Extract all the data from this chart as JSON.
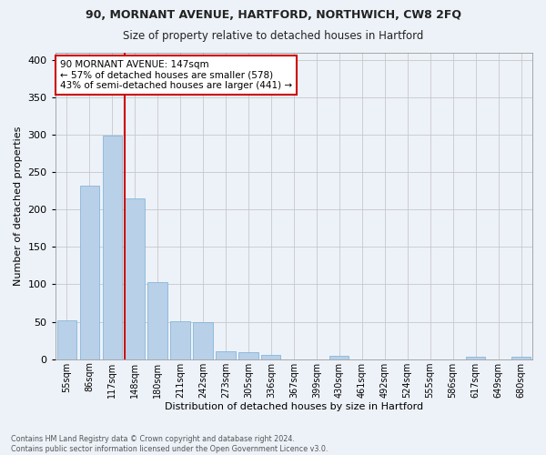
{
  "title": "90, MORNANT AVENUE, HARTFORD, NORTHWICH, CW8 2FQ",
  "subtitle": "Size of property relative to detached houses in Hartford",
  "xlabel": "Distribution of detached houses by size in Hartford",
  "ylabel": "Number of detached properties",
  "bar_labels": [
    "55sqm",
    "86sqm",
    "117sqm",
    "148sqm",
    "180sqm",
    "211sqm",
    "242sqm",
    "273sqm",
    "305sqm",
    "336sqm",
    "367sqm",
    "399sqm",
    "430sqm",
    "461sqm",
    "492sqm",
    "524sqm",
    "555sqm",
    "586sqm",
    "617sqm",
    "649sqm",
    "680sqm"
  ],
  "bar_values": [
    52,
    232,
    299,
    215,
    103,
    51,
    49,
    10,
    9,
    6,
    0,
    0,
    5,
    0,
    0,
    0,
    0,
    0,
    3,
    0,
    3
  ],
  "bar_color": "#b8d0e8",
  "bar_edgecolor": "#7aafd4",
  "grid_color": "#c8c8c8",
  "background_color": "#edf2f9",
  "vline_color": "#cc0000",
  "annotation_title": "90 MORNANT AVENUE: 147sqm",
  "annotation_line1": "← 57% of detached houses are smaller (578)",
  "annotation_line2": "43% of semi-detached houses are larger (441) →",
  "annotation_box_color": "#cc0000",
  "footer_line1": "Contains HM Land Registry data © Crown copyright and database right 2024.",
  "footer_line2": "Contains public sector information licensed under the Open Government Licence v3.0.",
  "ylim": [
    0,
    410
  ],
  "yticks": [
    0,
    50,
    100,
    150,
    200,
    250,
    300,
    350,
    400
  ]
}
